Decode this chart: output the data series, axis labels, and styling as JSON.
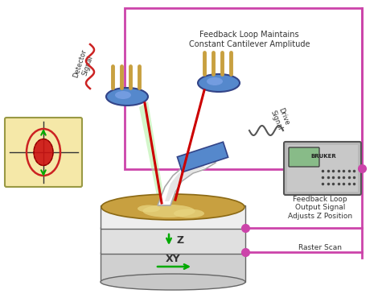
{
  "title": "",
  "background_color": "#ffffff",
  "feedback_loop_text": "Feedback Loop Maintains\nConstant Cantilever Amplitude",
  "feedback_loop_output_text": "Feedback Loop\nOutput Signal\nAdjusts Z Position",
  "raster_scan_text": "Raster Scan",
  "drive_signal_text": "Drive\nSignal",
  "detector_signal_text": "Detector\nSignal",
  "z_label": "Z",
  "xy_label": "XY",
  "border_color": "#cc44aa",
  "red_line_color": "#cc0000",
  "green_color": "#00aa00",
  "gold_color": "#c8a040",
  "blue_color": "#4466aa",
  "dot_color": "#cc44aa",
  "text_color": "#333333",
  "figsize": [
    4.7,
    3.65
  ],
  "dpi": 100
}
